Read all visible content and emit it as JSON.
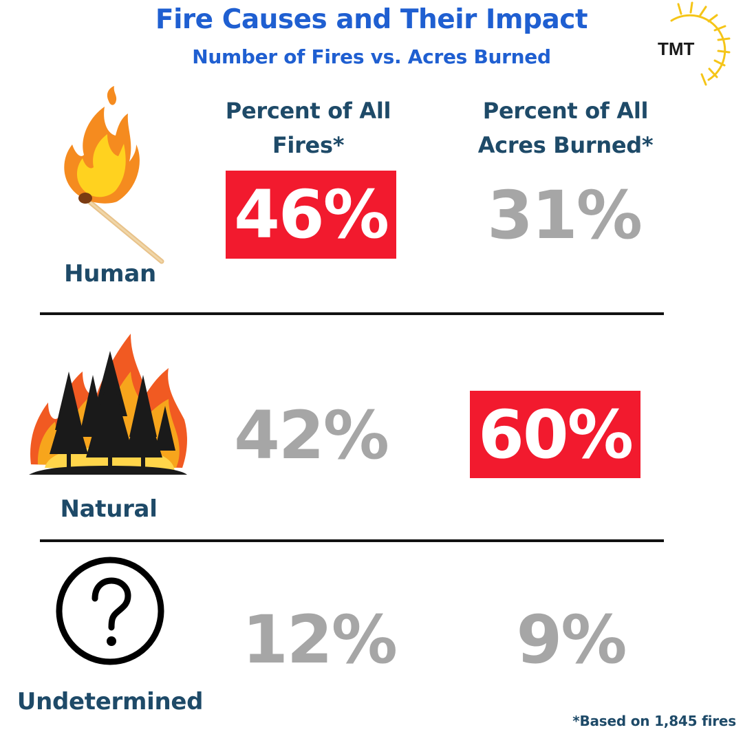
{
  "header": {
    "title": "Fire Causes and Their Impact",
    "subtitle": "Number of Fires vs. Acres Burned",
    "logo_text": "TMT"
  },
  "columns": {
    "fires_line1": "Percent of All",
    "fires_line2": "Fires*",
    "acres_line1": "Percent of All",
    "acres_line2": "Acres Burned*"
  },
  "rows": [
    {
      "label": "Human",
      "icon": "burning-match-icon",
      "fires": "46%",
      "acres": "31%",
      "highlight": "fires"
    },
    {
      "label": "Natural",
      "icon": "forest-fire-icon",
      "fires": "42%",
      "acres": "60%",
      "highlight": "acres"
    },
    {
      "label": "Undetermined",
      "icon": "question-mark-circle-icon",
      "fires": "12%",
      "acres": "9%",
      "highlight": "none"
    }
  ],
  "footnote": "*Based on 1,845 fires",
  "colors": {
    "title": "#1f5fd1",
    "text": "#1e4a68",
    "highlight_bg": "#f21a2e",
    "muted_value": "#a6a6a6"
  },
  "chart_data": {
    "type": "table",
    "title": "Fire Causes and Their Impact",
    "subtitle": "Number of Fires vs. Acres Burned",
    "categories": [
      "Human",
      "Natural",
      "Undetermined"
    ],
    "series": [
      {
        "name": "Percent of All Fires*",
        "values": [
          46,
          42,
          12
        ]
      },
      {
        "name": "Percent of All Acres Burned*",
        "values": [
          31,
          60,
          9
        ]
      }
    ],
    "unit": "%",
    "note": "*Based on 1,845 fires"
  }
}
